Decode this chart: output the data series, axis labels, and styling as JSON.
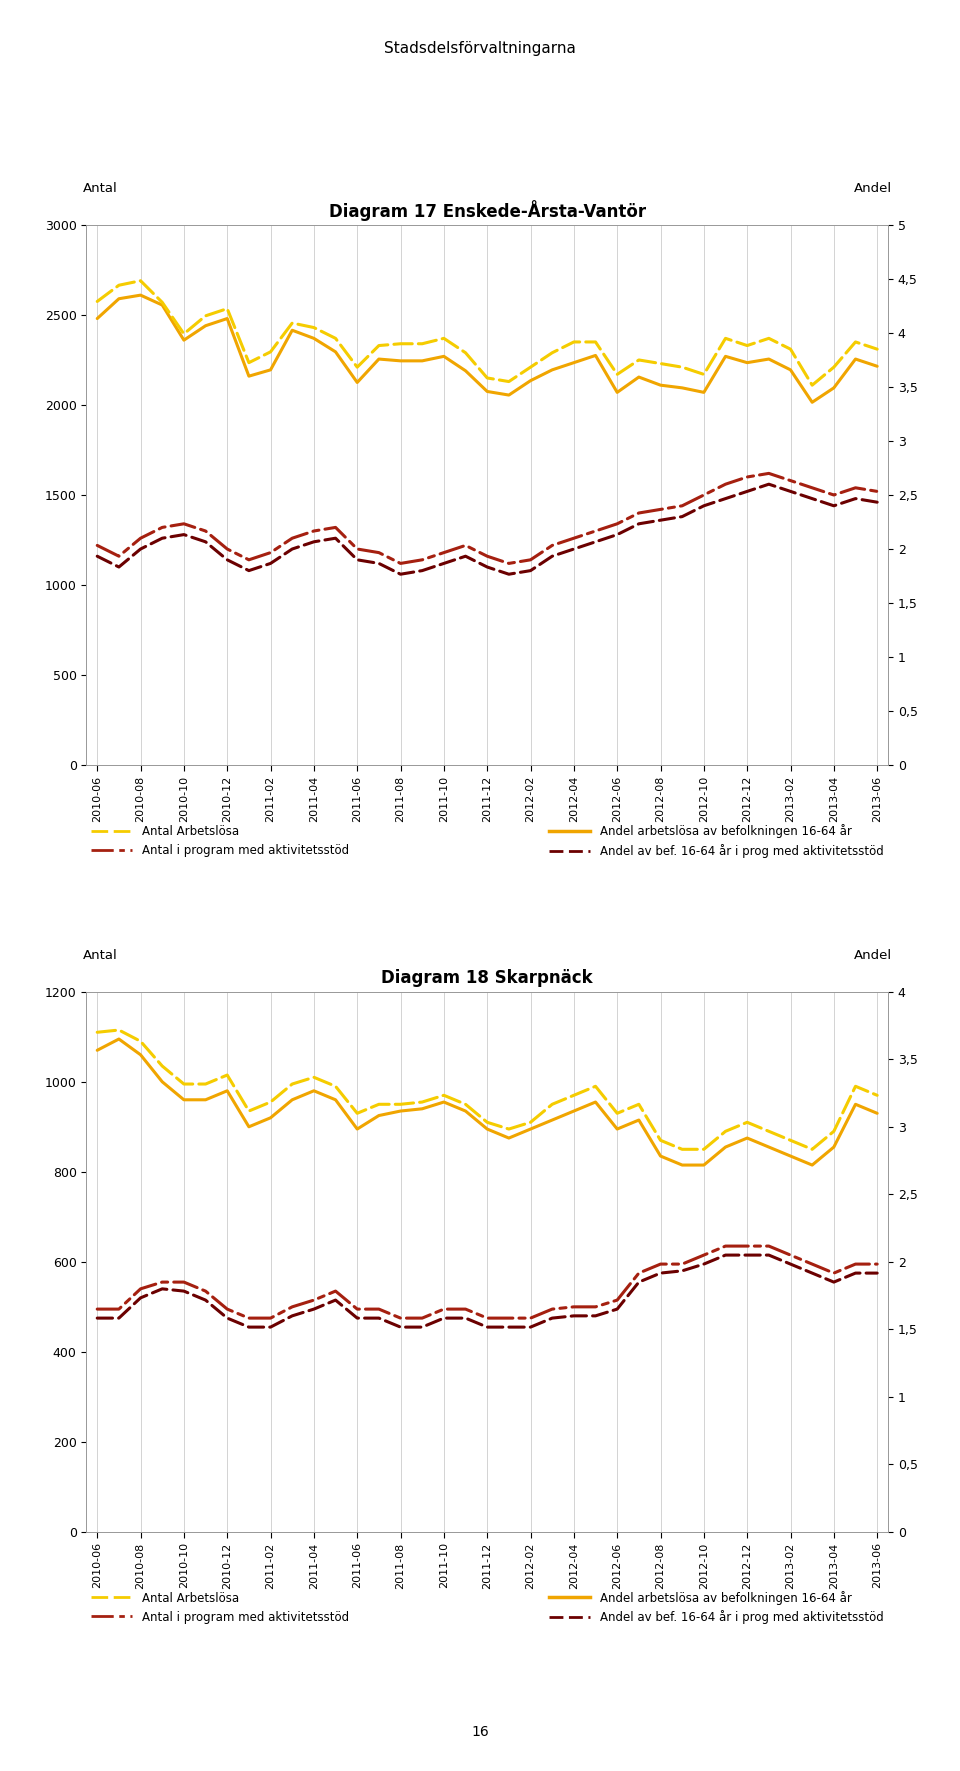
{
  "page_title": "Stadsdelsförvaltningarna",
  "page_number": "16",
  "chart1": {
    "title": "Diagram 17 Enskede-Årsta-Vantör",
    "left_label": "Antal",
    "right_label": "Andel",
    "ylim_left": [
      0,
      3000
    ],
    "ylim_right": [
      0,
      5
    ],
    "yticks_left": [
      0,
      500,
      1000,
      1500,
      2000,
      2500,
      3000
    ],
    "yticks_right": [
      0,
      0.5,
      1,
      1.5,
      2,
      2.5,
      3,
      3.5,
      4,
      4.5,
      5
    ],
    "antal_arbetslosa": [
      2480,
      2590,
      2610,
      2555,
      2360,
      2440,
      2480,
      2160,
      2195,
      2415,
      2370,
      2295,
      2125,
      2255,
      2245,
      2245,
      2270,
      2190,
      2075,
      2055,
      2135,
      2195,
      2235,
      2275,
      2070,
      2155,
      2110,
      2095,
      2070,
      2270,
      2235,
      2255,
      2195,
      2015,
      2095,
      2255,
      2215
    ],
    "antal_arbetslosa_dots": [
      2575,
      2665,
      2690,
      2570,
      2395,
      2495,
      2535,
      2235,
      2295,
      2455,
      2430,
      2370,
      2210,
      2330,
      2340,
      2340,
      2370,
      2290,
      2150,
      2130,
      2210,
      2290,
      2350,
      2350,
      2170,
      2250,
      2230,
      2210,
      2170,
      2370,
      2330,
      2370,
      2310,
      2110,
      2210,
      2350,
      2310
    ],
    "antal_prog": [
      1160,
      1100,
      1200,
      1260,
      1280,
      1240,
      1140,
      1080,
      1120,
      1200,
      1240,
      1260,
      1140,
      1120,
      1060,
      1080,
      1120,
      1160,
      1100,
      1060,
      1080,
      1160,
      1200,
      1240,
      1280,
      1340,
      1360,
      1380,
      1440,
      1480,
      1520,
      1560,
      1520,
      1480,
      1440,
      1480,
      1460
    ],
    "antal_prog_dots": [
      1220,
      1160,
      1260,
      1320,
      1340,
      1300,
      1200,
      1140,
      1180,
      1260,
      1300,
      1320,
      1200,
      1180,
      1120,
      1140,
      1180,
      1220,
      1160,
      1120,
      1140,
      1220,
      1260,
      1300,
      1340,
      1400,
      1420,
      1440,
      1500,
      1560,
      1600,
      1620,
      1580,
      1540,
      1500,
      1540,
      1520
    ]
  },
  "chart2": {
    "title": "Diagram 18 Skarpnäck",
    "left_label": "Antal",
    "right_label": "Andel",
    "ylim_left": [
      0,
      1200
    ],
    "ylim_right": [
      0,
      4
    ],
    "yticks_left": [
      0,
      200,
      400,
      600,
      800,
      1000,
      1200
    ],
    "yticks_right": [
      0,
      0.5,
      1,
      1.5,
      2,
      2.5,
      3,
      3.5,
      4
    ],
    "antal_arbetslosa": [
      1070,
      1095,
      1060,
      1000,
      960,
      960,
      980,
      900,
      920,
      960,
      980,
      960,
      895,
      925,
      935,
      940,
      955,
      935,
      895,
      875,
      895,
      915,
      935,
      955,
      895,
      915,
      835,
      815,
      815,
      855,
      875,
      855,
      835,
      815,
      855,
      950,
      930
    ],
    "antal_arbetslosa_dots": [
      1110,
      1115,
      1090,
      1035,
      995,
      995,
      1015,
      935,
      955,
      995,
      1010,
      990,
      930,
      950,
      950,
      955,
      970,
      950,
      910,
      895,
      910,
      950,
      970,
      990,
      930,
      950,
      870,
      850,
      850,
      890,
      910,
      890,
      870,
      850,
      890,
      990,
      970
    ],
    "antal_prog": [
      475,
      475,
      520,
      540,
      535,
      515,
      475,
      455,
      455,
      480,
      495,
      515,
      475,
      475,
      455,
      455,
      475,
      475,
      455,
      455,
      455,
      475,
      480,
      480,
      495,
      555,
      575,
      580,
      595,
      615,
      615,
      615,
      595,
      575,
      555,
      575,
      575
    ],
    "antal_prog_dots": [
      495,
      495,
      540,
      555,
      555,
      535,
      495,
      475,
      475,
      500,
      515,
      535,
      495,
      495,
      475,
      475,
      495,
      495,
      475,
      475,
      475,
      495,
      500,
      500,
      515,
      575,
      595,
      595,
      615,
      635,
      635,
      635,
      615,
      595,
      575,
      595,
      595
    ]
  },
  "color_orange_solid": "#F0A500",
  "color_yellow_dot": "#F5CC00",
  "color_dark_red_solid": "#6B0000",
  "color_dark_red_dot": "#A52010",
  "legend1_col1_row1_label": "Antal Arbetslösa",
  "legend1_col1_row2_label": "Andel arbetslösa av befolkningen 16-64 år",
  "legend1_col2_row1_label": "Antal i program med aktivitetsstöd",
  "legend1_col2_row2_label": "Andel av bef. 16-64 år i prog med aktivitetsstöd"
}
